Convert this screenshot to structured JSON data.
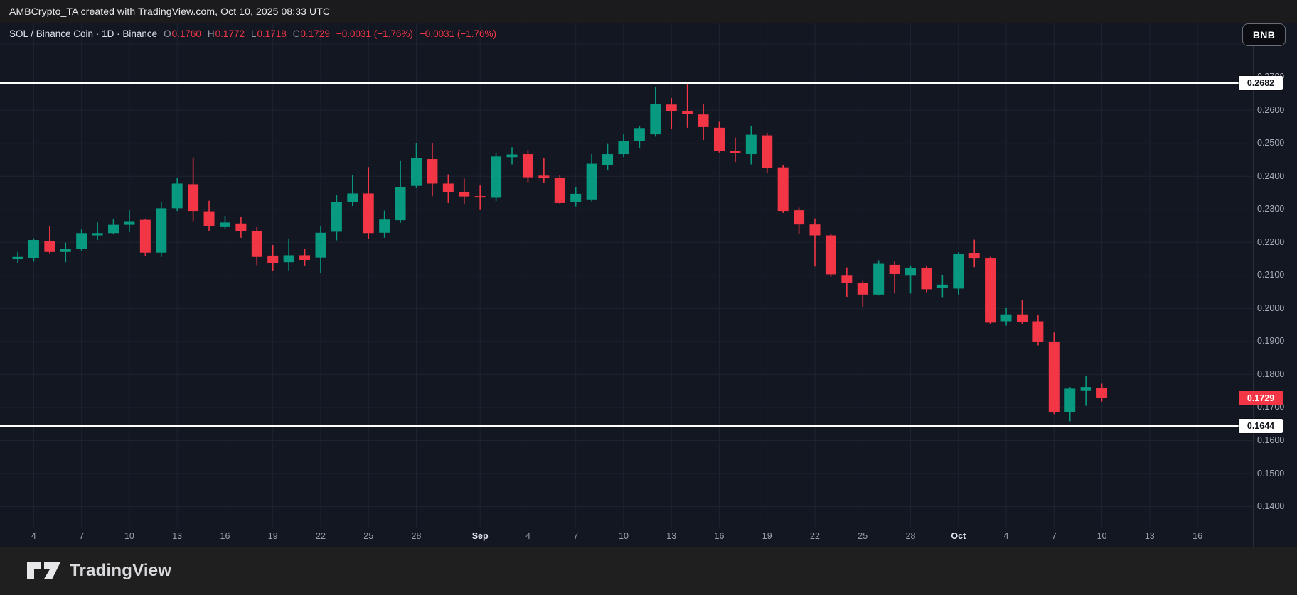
{
  "topbar": {
    "attribution": "AMBCrypto_TA created with TradingView.com, Oct 10, 2025 08:33 UTC"
  },
  "legend": {
    "symbol_text": "SOL / Binance Coin · 1D · Binance",
    "ohlc": [
      {
        "label": "O",
        "value": "0.1760"
      },
      {
        "label": "H",
        "value": "0.1772"
      },
      {
        "label": "L",
        "value": "0.1718"
      },
      {
        "label": "C",
        "value": "0.1729"
      }
    ],
    "change_1": "−0.0031 (−1.76%)",
    "change_2": "−0.0031 (−1.76%)"
  },
  "badge": {
    "label": "BNB"
  },
  "footer": {
    "brand": "TradingView"
  },
  "colors": {
    "up": "#089981",
    "down": "#f23645",
    "background": "#131722",
    "grid": "#1d2330",
    "axis_text": "#a8adb9",
    "level_line": "#ffffff",
    "last_price_bg": "#f23645"
  },
  "price_axis": {
    "labels": [
      "0.2700",
      "0.2600",
      "0.2500",
      "0.2400",
      "0.2300",
      "0.2200",
      "0.2100",
      "0.2000",
      "0.1900",
      "0.1800",
      "0.1700",
      "0.1600",
      "0.1500",
      "0.1400"
    ],
    "unlabeled_grid": [
      0.28
    ]
  },
  "time_axis": {
    "labels": [
      {
        "text": "4",
        "index": 1
      },
      {
        "text": "7",
        "index": 4
      },
      {
        "text": "10",
        "index": 7
      },
      {
        "text": "13",
        "index": 10
      },
      {
        "text": "16",
        "index": 13
      },
      {
        "text": "19",
        "index": 16
      },
      {
        "text": "22",
        "index": 19
      },
      {
        "text": "25",
        "index": 22
      },
      {
        "text": "28",
        "index": 25
      },
      {
        "text": "Sep",
        "index": 29,
        "major": true
      },
      {
        "text": "4",
        "index": 32
      },
      {
        "text": "7",
        "index": 35
      },
      {
        "text": "10",
        "index": 38
      },
      {
        "text": "13",
        "index": 41
      },
      {
        "text": "16",
        "index": 44
      },
      {
        "text": "19",
        "index": 47
      },
      {
        "text": "22",
        "index": 50
      },
      {
        "text": "25",
        "index": 53
      },
      {
        "text": "28",
        "index": 56
      },
      {
        "text": "Oct",
        "index": 59,
        "major": true
      },
      {
        "text": "4",
        "index": 62
      },
      {
        "text": "7",
        "index": 65
      },
      {
        "text": "10",
        "index": 68
      },
      {
        "text": "13",
        "index": 71
      },
      {
        "text": "16",
        "index": 74
      }
    ]
  },
  "levels": [
    {
      "price": 0.2682,
      "label": "0.2682"
    },
    {
      "price": 0.1644,
      "label": "0.1644"
    }
  ],
  "last_price": {
    "price": 0.1729,
    "label": "0.1729",
    "direction": "down"
  },
  "chart_data": {
    "type": "candlestick",
    "symbol": "SOL / Binance Coin",
    "interval": "1D",
    "exchange": "Binance",
    "quote_currency": "BNB",
    "ylim": [
      0.134,
      0.2815
    ],
    "grid": true,
    "columns": [
      "date",
      "open",
      "high",
      "low",
      "close"
    ],
    "candles": [
      [
        "Aug 3",
        0.2149,
        0.2171,
        0.2138,
        0.2156
      ],
      [
        "Aug 4",
        0.2153,
        0.2212,
        0.2142,
        0.2207
      ],
      [
        "Aug 5",
        0.2203,
        0.2249,
        0.2165,
        0.2171
      ],
      [
        "Aug 6",
        0.2171,
        0.2199,
        0.214,
        0.2181
      ],
      [
        "Aug 7",
        0.2181,
        0.2239,
        0.2175,
        0.2228
      ],
      [
        "Aug 8",
        0.2221,
        0.226,
        0.2207,
        0.2228
      ],
      [
        "Aug 9",
        0.2228,
        0.2271,
        0.2224,
        0.2253
      ],
      [
        "Aug 10",
        0.2253,
        0.2297,
        0.2231,
        0.2264
      ],
      [
        "Aug 11",
        0.2268,
        0.227,
        0.216,
        0.2169
      ],
      [
        "Aug 12",
        0.2169,
        0.2321,
        0.2156,
        0.2303
      ],
      [
        "Aug 13",
        0.2303,
        0.2395,
        0.2295,
        0.2378
      ],
      [
        "Aug 14",
        0.2376,
        0.2457,
        0.2264,
        0.2295
      ],
      [
        "Aug 15",
        0.2294,
        0.2326,
        0.2235,
        0.2248
      ],
      [
        "Aug 16",
        0.2246,
        0.228,
        0.224,
        0.226
      ],
      [
        "Aug 17",
        0.2257,
        0.2278,
        0.2214,
        0.2235
      ],
      [
        "Aug 18",
        0.2235,
        0.2246,
        0.2131,
        0.2156
      ],
      [
        "Aug 19",
        0.216,
        0.2192,
        0.2113,
        0.2138
      ],
      [
        "Aug 20",
        0.214,
        0.2211,
        0.2115,
        0.2161
      ],
      [
        "Aug 21",
        0.2161,
        0.2181,
        0.213,
        0.2147
      ],
      [
        "Aug 22",
        0.2154,
        0.2249,
        0.2108,
        0.2229
      ],
      [
        "Aug 23",
        0.2232,
        0.2343,
        0.2206,
        0.2321
      ],
      [
        "Aug 24",
        0.2321,
        0.2405,
        0.231,
        0.2348
      ],
      [
        "Aug 25",
        0.2348,
        0.2428,
        0.221,
        0.2228
      ],
      [
        "Aug 26",
        0.2229,
        0.2296,
        0.2214,
        0.2269
      ],
      [
        "Aug 27",
        0.2267,
        0.2446,
        0.2259,
        0.2368
      ],
      [
        "Aug 28",
        0.2371,
        0.25,
        0.2364,
        0.2455
      ],
      [
        "Aug 29",
        0.2452,
        0.25,
        0.234,
        0.2378
      ],
      [
        "Aug 30",
        0.2378,
        0.2406,
        0.2319,
        0.2351
      ],
      [
        "Aug 31",
        0.2353,
        0.2393,
        0.2316,
        0.2339
      ],
      [
        "Sep 1",
        0.234,
        0.2372,
        0.2298,
        0.2336
      ],
      [
        "Sep 2",
        0.2335,
        0.2471,
        0.2325,
        0.246
      ],
      [
        "Sep 3",
        0.2458,
        0.2488,
        0.2436,
        0.2466
      ],
      [
        "Sep 4",
        0.2467,
        0.2479,
        0.238,
        0.2397
      ],
      [
        "Sep 5",
        0.2402,
        0.2455,
        0.2379,
        0.2394
      ],
      [
        "Sep 6",
        0.2395,
        0.2403,
        0.2317,
        0.2319
      ],
      [
        "Sep 7",
        0.2322,
        0.2368,
        0.2309,
        0.2347
      ],
      [
        "Sep 8",
        0.233,
        0.2467,
        0.2324,
        0.2438
      ],
      [
        "Sep 9",
        0.2434,
        0.2498,
        0.2418,
        0.2467
      ],
      [
        "Sep 10",
        0.2467,
        0.2527,
        0.2458,
        0.2506
      ],
      [
        "Sep 11",
        0.2506,
        0.2551,
        0.2484,
        0.2546
      ],
      [
        "Sep 12",
        0.2527,
        0.267,
        0.252,
        0.2619
      ],
      [
        "Sep 13",
        0.2617,
        0.2637,
        0.2544,
        0.2596
      ],
      [
        "Sep 14",
        0.2596,
        0.268,
        0.2547,
        0.2589
      ],
      [
        "Sep 15",
        0.2587,
        0.2619,
        0.251,
        0.2549
      ],
      [
        "Sep 16",
        0.2547,
        0.2565,
        0.2472,
        0.2477
      ],
      [
        "Sep 17",
        0.2477,
        0.2517,
        0.2443,
        0.247
      ],
      [
        "Sep 18",
        0.2467,
        0.2553,
        0.2436,
        0.2526
      ],
      [
        "Sep 19",
        0.2524,
        0.2531,
        0.241,
        0.2425
      ],
      [
        "Sep 20",
        0.2427,
        0.2433,
        0.2289,
        0.2295
      ],
      [
        "Sep 21",
        0.2297,
        0.2305,
        0.2225,
        0.2254
      ],
      [
        "Sep 22",
        0.2254,
        0.2272,
        0.2127,
        0.2221
      ],
      [
        "Sep 23",
        0.2221,
        0.2225,
        0.2096,
        0.2103
      ],
      [
        "Sep 24",
        0.2099,
        0.2124,
        0.2035,
        0.2077
      ],
      [
        "Sep 25",
        0.2076,
        0.2083,
        0.2004,
        0.2042
      ],
      [
        "Sep 26",
        0.2042,
        0.2146,
        0.2039,
        0.2135
      ],
      [
        "Sep 27",
        0.2132,
        0.2142,
        0.2045,
        0.2104
      ],
      [
        "Sep 28",
        0.2099,
        0.213,
        0.2045,
        0.2122
      ],
      [
        "Sep 29",
        0.2122,
        0.2128,
        0.2049,
        0.2058
      ],
      [
        "Sep 30",
        0.2063,
        0.2101,
        0.2032,
        0.2072
      ],
      [
        "Oct 1",
        0.206,
        0.217,
        0.2042,
        0.2164
      ],
      [
        "Oct 2",
        0.2167,
        0.2208,
        0.2125,
        0.2151
      ],
      [
        "Oct 3",
        0.2151,
        0.2156,
        0.1952,
        0.1957
      ],
      [
        "Oct 4",
        0.1961,
        0.2001,
        0.1948,
        0.1982
      ],
      [
        "Oct 5",
        0.1982,
        0.2025,
        0.1953,
        0.1958
      ],
      [
        "Oct 6",
        0.1961,
        0.1979,
        0.1888,
        0.1898
      ],
      [
        "Oct 7",
        0.1898,
        0.1927,
        0.168,
        0.1687
      ],
      [
        "Oct 8",
        0.1687,
        0.1762,
        0.1658,
        0.1757
      ],
      [
        "Oct 9",
        0.1752,
        0.1796,
        0.1705,
        0.1762
      ],
      [
        "Oct 10",
        0.176,
        0.1772,
        0.1718,
        0.1729
      ]
    ],
    "levels": [
      0.2682,
      0.1644
    ],
    "last_close": 0.1729
  }
}
